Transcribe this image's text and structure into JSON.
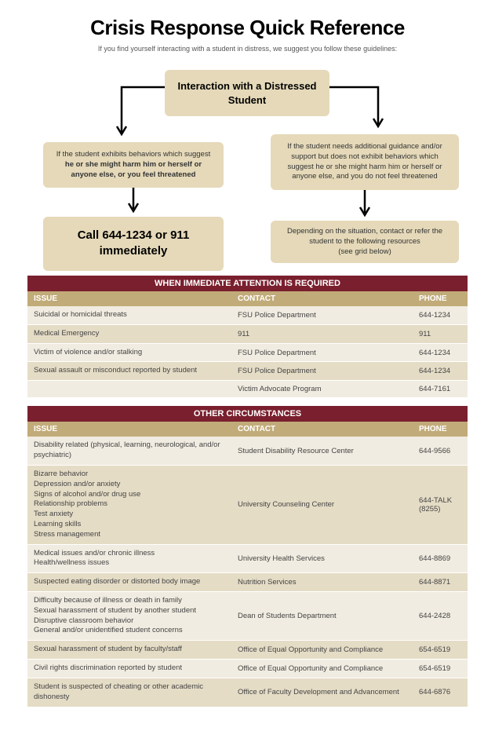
{
  "colors": {
    "box_bg": "#e5d9b9",
    "section_header_bg": "#7a1f2e",
    "col_header_bg": "#c1ab79",
    "row_a": "#f1ece1",
    "row_b": "#e5dcc6",
    "page_bg": "#ffffff",
    "arrow": "#000000"
  },
  "header": {
    "title": "Crisis Response Quick Reference",
    "subtitle": "If you find yourself interacting with a student in distress, we suggest you follow these guidelines:"
  },
  "flow": {
    "start": "Interaction with a Distressed Student",
    "left1_pre": "If the student exhibits behaviors which suggest ",
    "left1_bold": "he or she might harm him or herself or anyone else, or you feel threatened",
    "right1": "If the student needs additional guidance and/or support but does not exhibit behaviors which suggest he or she might harm him or herself or anyone else, and you do not feel threatened",
    "left2": "Call 644-1234 or 911 immediately",
    "right2": "Depending on the situation, contact or refer the student to the following resources",
    "right2_sub": "(see grid below)"
  },
  "table1": {
    "header": "WHEN IMMEDIATE ATTENTION IS REQUIRED",
    "cols": {
      "issue": "ISSUE",
      "contact": "CONTACT",
      "phone": "PHONE"
    },
    "rows": [
      {
        "issue": "Suicidal or homicidal threats",
        "contact": "FSU Police Department",
        "phone": "644-1234",
        "bg": "a"
      },
      {
        "issue": "Medical Emergency",
        "contact": "911",
        "phone": "911",
        "bg": "b"
      },
      {
        "issue": "Victim of violence and/or stalking",
        "contact": "FSU Police Department",
        "phone": "644-1234",
        "bg": "a"
      },
      {
        "issue": "Sexual assault or misconduct reported by student",
        "contact": "FSU Police Department",
        "phone": "644-1234",
        "bg": "b"
      },
      {
        "issue": "",
        "contact": "Victim Advocate Program",
        "phone": "644-7161",
        "bg": "a"
      }
    ]
  },
  "table2": {
    "header": "OTHER CIRCUMSTANCES",
    "cols": {
      "issue": "ISSUE",
      "contact": "CONTACT",
      "phone": "PHONE"
    },
    "rows": [
      {
        "issue": "Disability related (physical, learning, neurological, and/or psychiatric)",
        "contact": "Student Disability Resource Center",
        "phone": "644-9566",
        "bg": "a"
      },
      {
        "issue": "Bizarre behavior\nDepression and/or anxiety\nSigns of alcohol and/or drug use\nRelationship problems\nTest anxiety\nLearning skills\nStress management",
        "contact": "University Counseling Center",
        "phone": "644-TALK (8255)",
        "bg": "b"
      },
      {
        "issue": "Medical issues and/or chronic illness\nHealth/wellness issues",
        "contact": "University Health Services",
        "phone": "644-8869",
        "bg": "a"
      },
      {
        "issue": "Suspected eating disorder or distorted body image",
        "contact": "Nutrition Services",
        "phone": "644-8871",
        "bg": "b"
      },
      {
        "issue": "Difficulty because of illness or death in family\nSexual harassment of student by another student\nDisruptive classroom behavior\nGeneral and/or unidentified student concerns",
        "contact": "Dean of Students Department",
        "phone": "644-2428",
        "bg": "a"
      },
      {
        "issue": "Sexual harassment of student by faculty/staff",
        "contact": "Office of Equal Opportunity and Compliance",
        "phone": "654-6519",
        "bg": "b"
      },
      {
        "issue": "Civil rights discrimination reported by student",
        "contact": "Office of Equal Opportunity and Compliance",
        "phone": "654-6519",
        "bg": "a"
      },
      {
        "issue": "Student is suspected of cheating or other academic dishonesty",
        "contact": "Office of Faculty Development and Advancement",
        "phone": "644-6876",
        "bg": "b"
      }
    ]
  }
}
